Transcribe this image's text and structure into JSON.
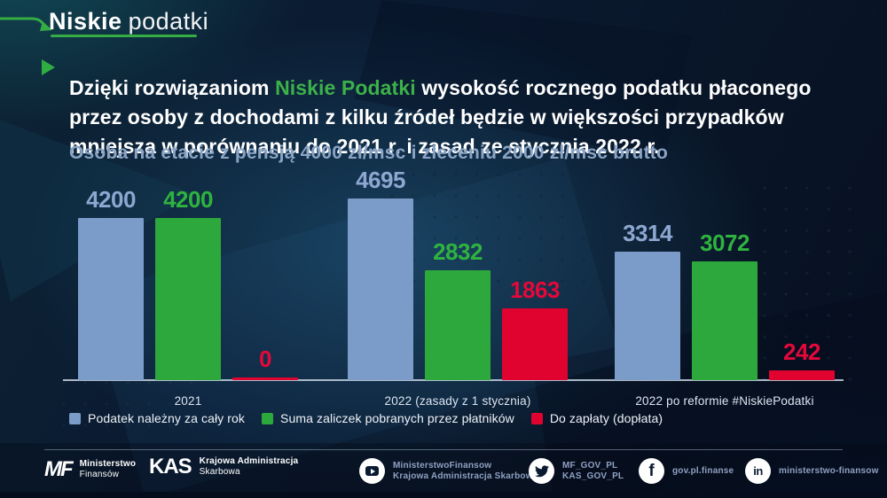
{
  "logo": {
    "bold": "Niskie",
    "light": "podatki"
  },
  "headline": {
    "part1": "Dzięki rozwiązaniom ",
    "highlight": "Niskie Podatki",
    "part2": " wysokość rocznego podatku płaconego przez osoby z dochodami z kilku źródeł będzie w większości przypadków mniejsza w porównaniu do 2021 r. i zasad ze stycznia 2022 r."
  },
  "subtitle": "Osoba na etacie z pensją 4000 zł/msc i zleceniu 2000 zł/msc brutto",
  "chart_data": {
    "type": "bar",
    "title": "Osoba na etacie z pensją 4000 zł/msc i zleceniu 2000 zł/msc brutto",
    "categories": [
      "2021",
      "2022 (zasady z 1 stycznia)",
      "2022 po reformie #NiskiePodatki"
    ],
    "series": [
      {
        "name": "Podatek należny za cały rok",
        "color": "#7b9cc8",
        "label_color": "#8da7d1",
        "values": [
          4200,
          4695,
          3314
        ]
      },
      {
        "name": "Suma zaliczek pobranych przez płatników",
        "color": "#2da83c",
        "label_color": "#2fb33f",
        "values": [
          4200,
          2832,
          3072
        ]
      },
      {
        "name": "Do zapłaty (dopłata)",
        "color": "#e0032f",
        "label_color": "#e5083a",
        "values": [
          0,
          1863,
          242
        ]
      }
    ],
    "ylim": [
      0,
      4695
    ],
    "value_labels": true,
    "grid": false,
    "legend_position": "bottom"
  },
  "footer": {
    "logos": [
      {
        "mark": "MF",
        "lines": [
          "Ministerstwo",
          "Finansów"
        ]
      },
      {
        "mark": "KAS",
        "lines": [
          "Krajowa Administracja",
          "Skarbowa"
        ]
      }
    ],
    "socials": [
      {
        "icon": "youtube-icon",
        "lines": [
          "MinisterstwoFinansow",
          "Krajowa Administracja Skarbowa"
        ]
      },
      {
        "icon": "twitter-icon",
        "lines": [
          "MF_GOV_PL",
          "KAS_GOV_PL"
        ]
      },
      {
        "icon": "facebook-icon",
        "lines": [
          "gov.pl.finanse"
        ]
      },
      {
        "icon": "linkedin-icon",
        "lines": [
          "ministerstwo-finansow"
        ]
      }
    ]
  },
  "colors": {
    "accent_green": "#35ad44",
    "bar_blue": "#7b9cc8",
    "bar_green": "#2da83c",
    "bar_red": "#e0032f",
    "subtitle_blue": "#8aa4c6",
    "background_navy": "#0a1a31"
  }
}
